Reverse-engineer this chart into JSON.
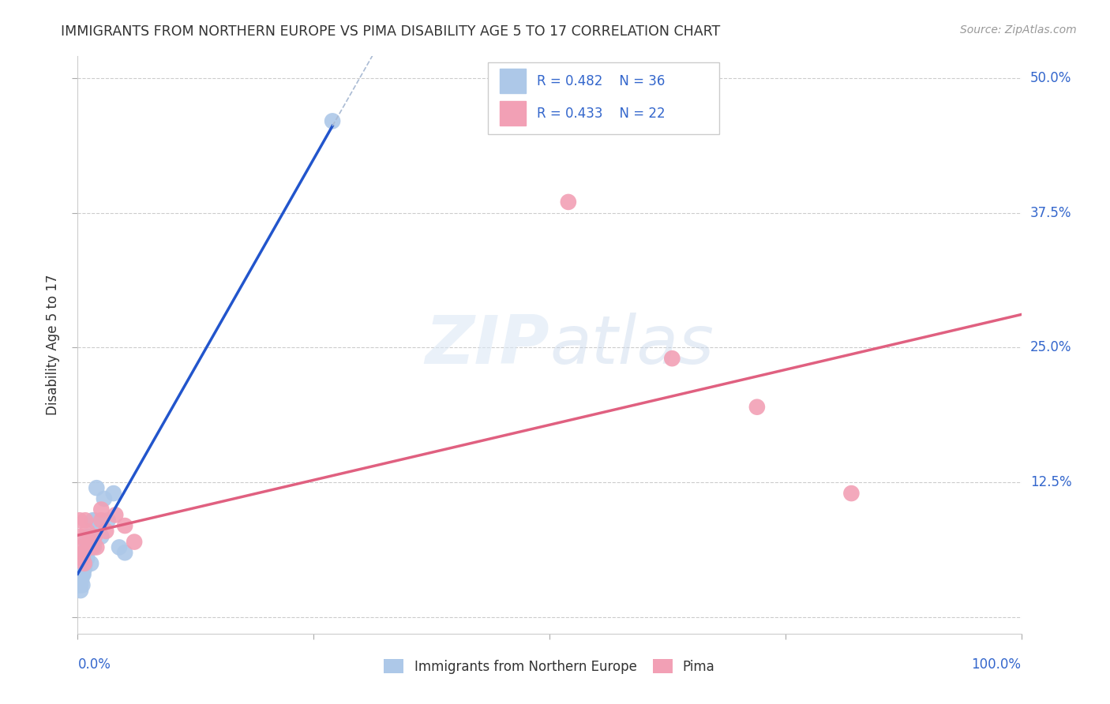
{
  "title": "IMMIGRANTS FROM NORTHERN EUROPE VS PIMA DISABILITY AGE 5 TO 17 CORRELATION CHART",
  "source": "Source: ZipAtlas.com",
  "ylabel": "Disability Age 5 to 17",
  "legend_blue_label": "Immigrants from Northern Europe",
  "legend_pink_label": "Pima",
  "legend_blue_R": "R = 0.482",
  "legend_blue_N": "N = 36",
  "legend_pink_R": "R = 0.433",
  "legend_pink_N": "N = 22",
  "blue_color": "#adc8e8",
  "pink_color": "#f2a0b5",
  "blue_line_color": "#2255cc",
  "pink_line_color": "#e06080",
  "blue_scatter_x": [
    0.001,
    0.002,
    0.002,
    0.003,
    0.003,
    0.003,
    0.004,
    0.004,
    0.005,
    0.005,
    0.005,
    0.006,
    0.006,
    0.007,
    0.007,
    0.008,
    0.009,
    0.009,
    0.01,
    0.011,
    0.012,
    0.013,
    0.014,
    0.015,
    0.016,
    0.017,
    0.018,
    0.02,
    0.022,
    0.025,
    0.028,
    0.032,
    0.038,
    0.044,
    0.05,
    0.27
  ],
  "blue_scatter_y": [
    0.03,
    0.035,
    0.04,
    0.025,
    0.03,
    0.04,
    0.035,
    0.045,
    0.03,
    0.04,
    0.05,
    0.04,
    0.055,
    0.045,
    0.06,
    0.05,
    0.06,
    0.07,
    0.055,
    0.075,
    0.065,
    0.07,
    0.05,
    0.075,
    0.09,
    0.065,
    0.09,
    0.12,
    0.085,
    0.075,
    0.11,
    0.09,
    0.115,
    0.065,
    0.06,
    0.46
  ],
  "pink_scatter_x": [
    0.002,
    0.003,
    0.004,
    0.005,
    0.006,
    0.007,
    0.008,
    0.01,
    0.012,
    0.015,
    0.018,
    0.02,
    0.025,
    0.03,
    0.04,
    0.05,
    0.06,
    0.025,
    0.52,
    0.63,
    0.72,
    0.82
  ],
  "pink_scatter_y": [
    0.09,
    0.075,
    0.065,
    0.055,
    0.06,
    0.05,
    0.09,
    0.08,
    0.07,
    0.065,
    0.075,
    0.065,
    0.09,
    0.08,
    0.095,
    0.085,
    0.07,
    0.1,
    0.385,
    0.24,
    0.195,
    0.115
  ],
  "xlim": [
    0.0,
    1.0
  ],
  "ylim": [
    -0.015,
    0.52
  ],
  "yticks": [
    0.0,
    0.125,
    0.25,
    0.375,
    0.5
  ],
  "yticklabels_right": [
    "",
    "12.5%",
    "25.0%",
    "37.5%",
    "50.0%"
  ]
}
